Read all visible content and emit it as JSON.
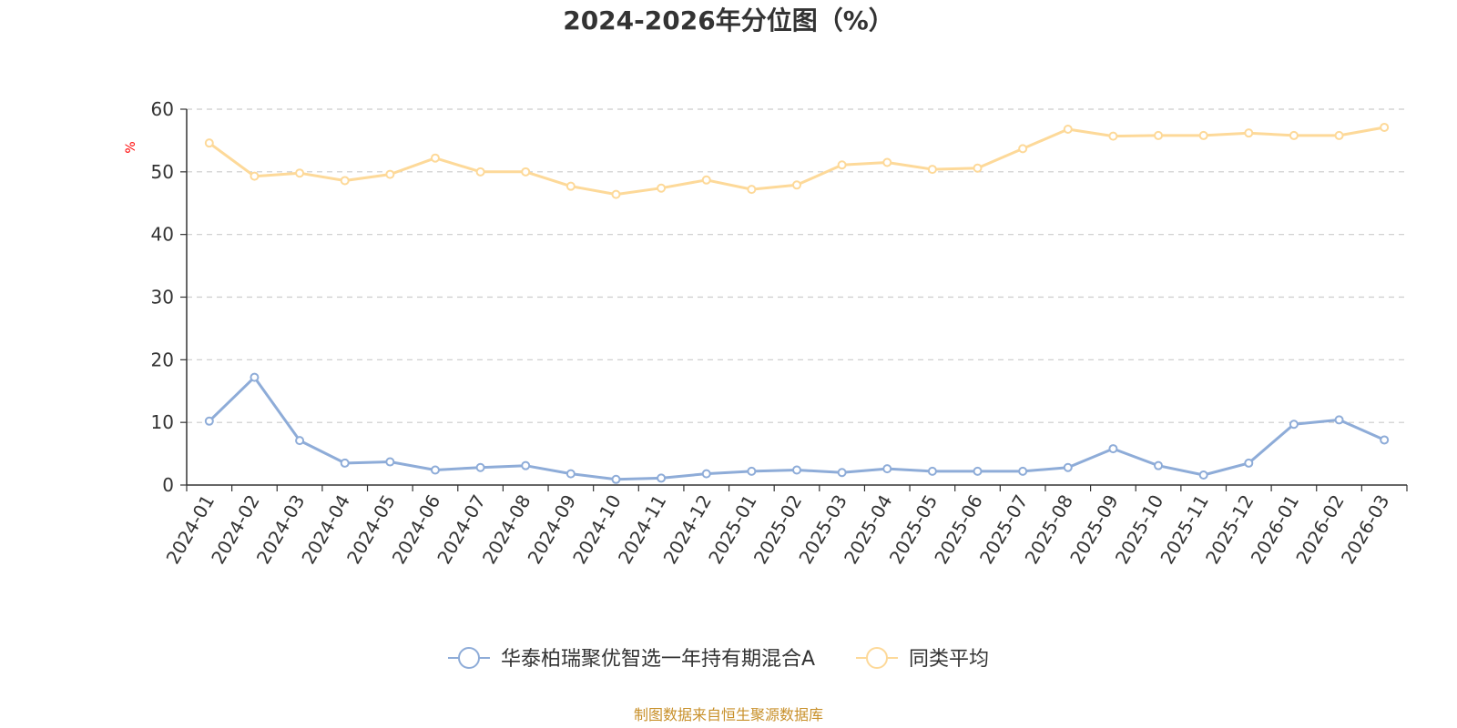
{
  "chart_data": {
    "type": "line",
    "title": "2024-2026年分位图（%）",
    "ylabel": "%",
    "ylim": [
      0,
      60
    ],
    "yticks": [
      "0",
      "10",
      "20",
      "30",
      "40",
      "50",
      "60"
    ],
    "grid": true,
    "legend_position": "bottom",
    "categories": [
      "2024-01",
      "2024-02",
      "2024-03",
      "2024-04",
      "2024-05",
      "2024-06",
      "2024-07",
      "2024-08",
      "2024-09",
      "2024-10",
      "2024-11",
      "2024-12",
      "2025-01",
      "2025-02",
      "2025-03",
      "2025-04",
      "2025-05",
      "2025-06",
      "2025-07",
      "2025-08",
      "2025-09",
      "2025-10",
      "2025-11",
      "2025-12",
      "2026-01",
      "2026-02",
      "2026-03"
    ],
    "series": [
      {
        "name": "华泰柏瑞聚优智选一年持有期混合A",
        "color": "#8eacd8",
        "values": [
          10.2,
          17.2,
          7.1,
          3.5,
          3.7,
          2.4,
          2.8,
          3.1,
          1.8,
          0.9,
          1.1,
          1.8,
          2.2,
          2.4,
          2.0,
          2.6,
          2.2,
          2.2,
          2.2,
          2.8,
          5.8,
          3.1,
          1.6,
          3.5,
          9.7,
          10.4,
          7.2
        ]
      },
      {
        "name": "同类平均",
        "color": "#fdd999",
        "values": [
          54.6,
          49.3,
          49.8,
          48.6,
          49.6,
          52.2,
          50.0,
          50.0,
          47.7,
          46.4,
          47.4,
          48.7,
          47.2,
          47.9,
          51.1,
          51.5,
          50.4,
          50.6,
          53.7,
          56.8,
          55.7,
          55.8,
          55.8,
          56.2,
          55.8,
          55.8,
          57.1
        ]
      }
    ]
  },
  "source_text": "制图数据来自恒生聚源数据库",
  "colors": {
    "axis": "#333333",
    "grid": "#cccccc",
    "unit": "#ff0000",
    "source": "#c8902a"
  }
}
